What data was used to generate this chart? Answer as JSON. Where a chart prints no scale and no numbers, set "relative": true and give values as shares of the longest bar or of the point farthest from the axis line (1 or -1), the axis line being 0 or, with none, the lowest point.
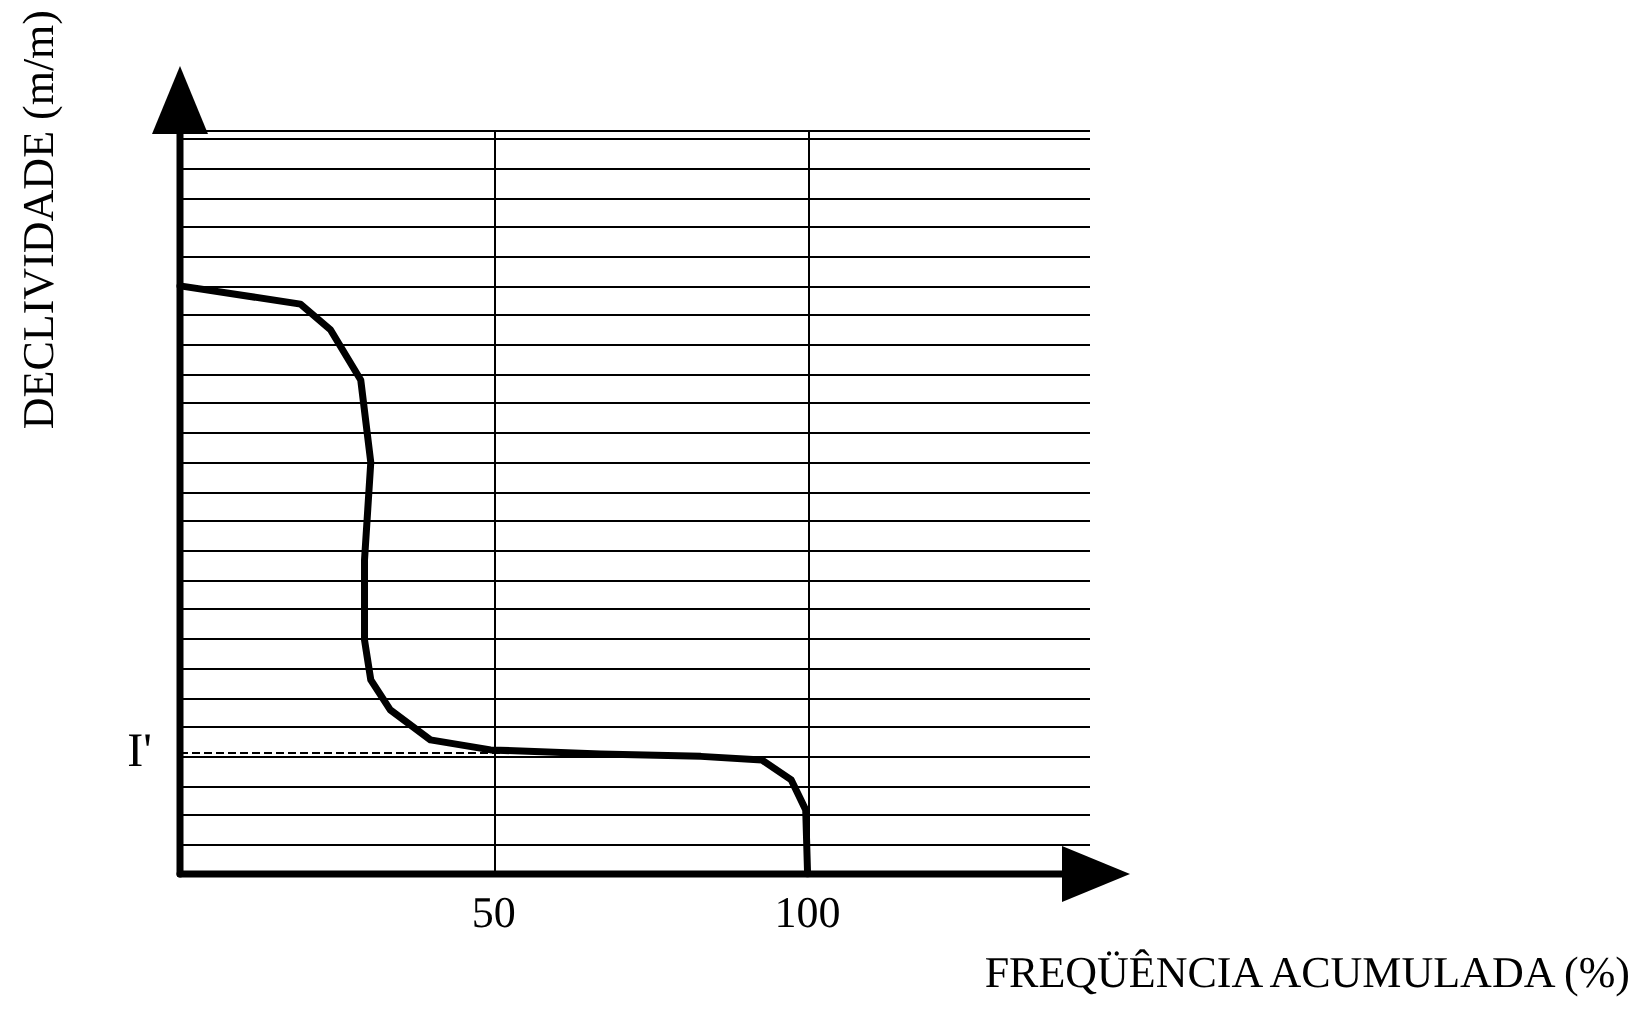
{
  "chart_data": {
    "type": "line",
    "relative": true,
    "xlabel": "FREQÜÊNCIA ACUMULADA (%)",
    "ylabel": "DECLIVIDADE (m/m)",
    "xlim": [
      0,
      145
    ],
    "xticks": [
      50,
      100
    ],
    "grid": true,
    "marker": "none",
    "line_style": "solid",
    "x": [
      0,
      19.2,
      24,
      28.8,
      30.4,
      29.4,
      29.4,
      30.4,
      33.5,
      39.9,
      49.5,
      67,
      83,
      92.7,
      97.4,
      99.7,
      100
    ],
    "series": [
      {
        "color": "#000000",
        "values": [
          1.0,
          0.969,
          0.925,
          0.84,
          0.7,
          0.534,
          0.398,
          0.33,
          0.279,
          0.228,
          0.211,
          0.204,
          0.2,
          0.194,
          0.16,
          0.109,
          0
        ]
      }
    ],
    "ref_lines": [
      {
        "axis": "y",
        "value": 0.207,
        "label": "I'",
        "line_style": "dashed",
        "color": "#000000"
      }
    ]
  }
}
